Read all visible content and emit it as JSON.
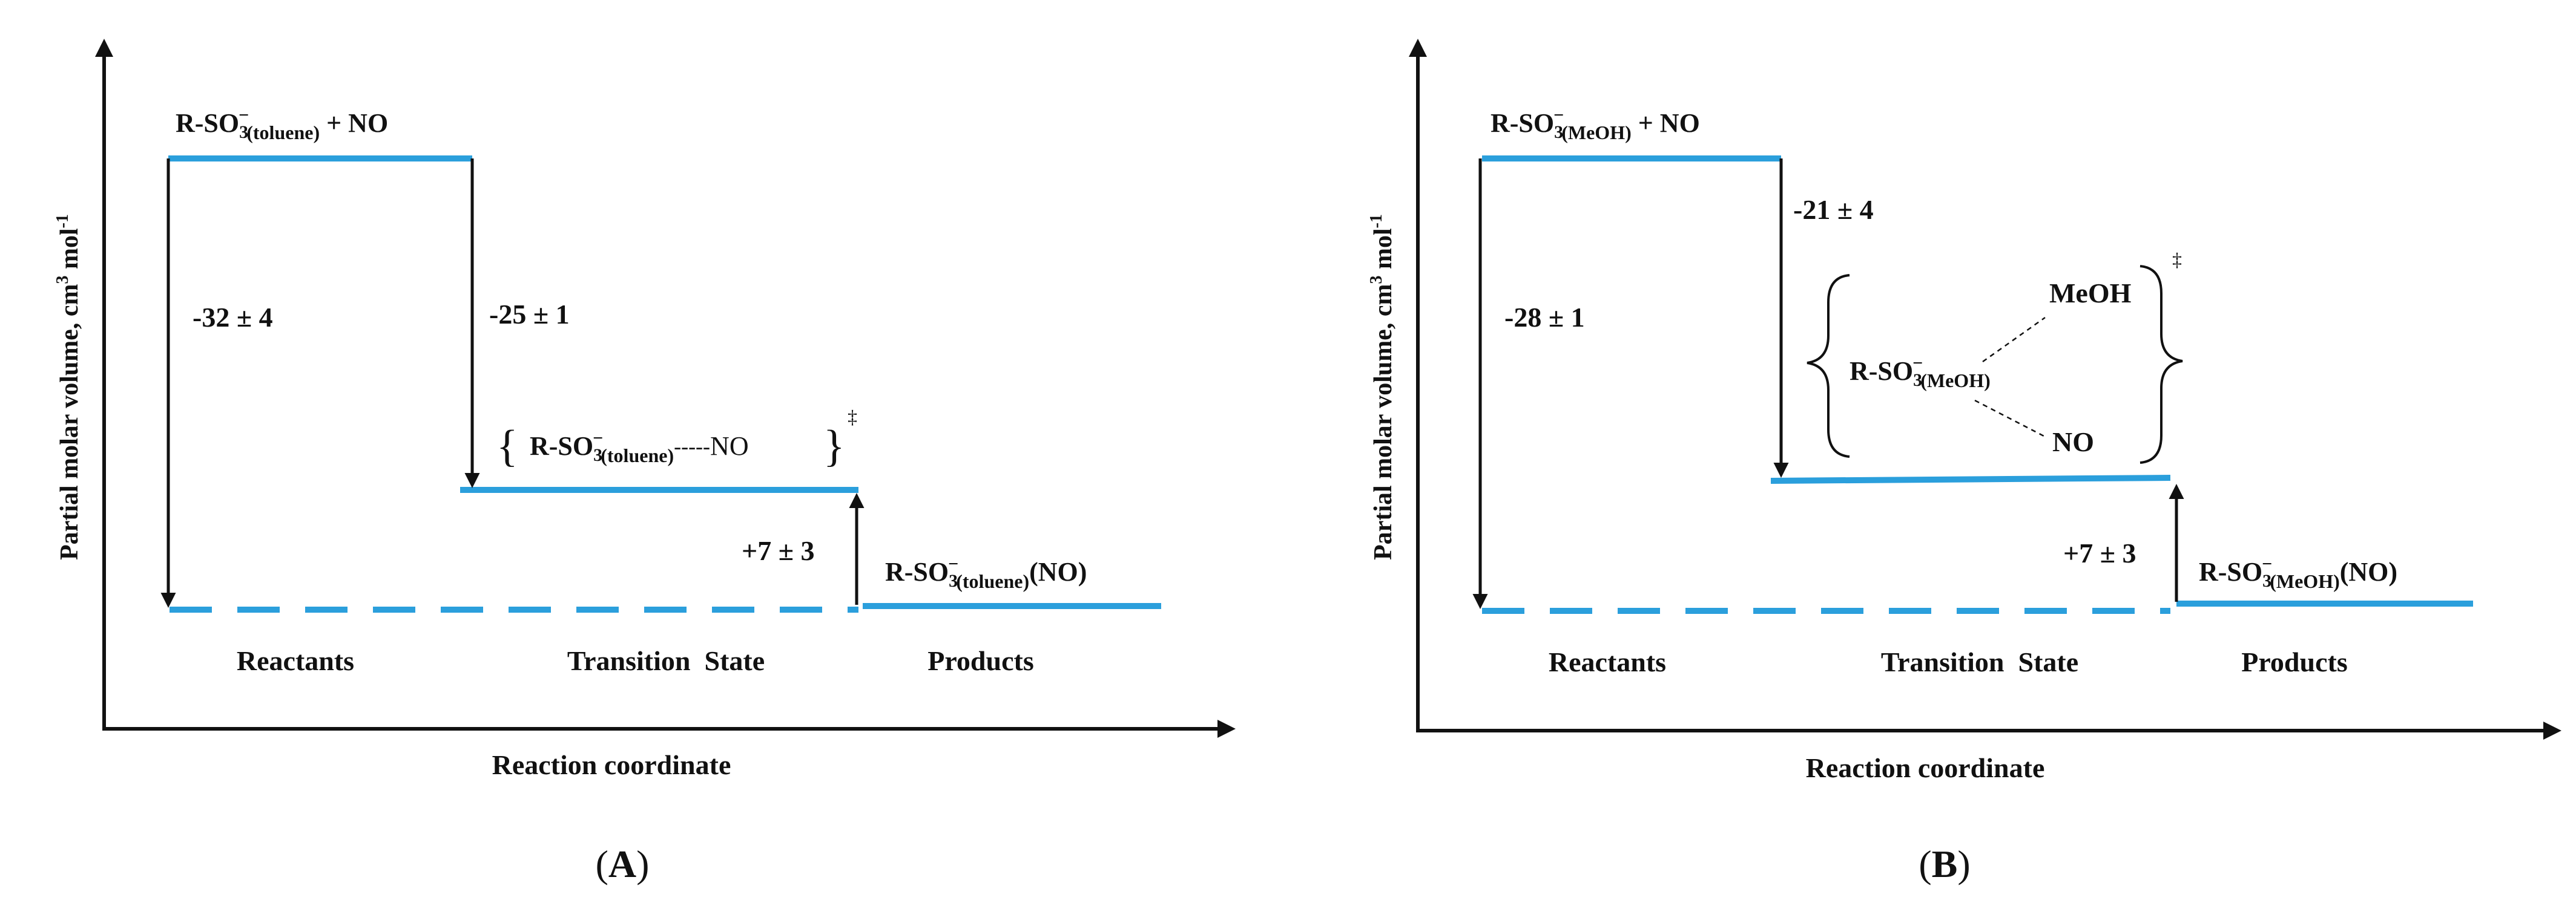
{
  "colors": {
    "level": "#2b9fdc",
    "axis": "#111111",
    "text": "#111111",
    "background": "#ffffff"
  },
  "panelA": {
    "ylabel": "Partial molar volume, cm",
    "ylabel_sup": "3",
    "ylabel_tail": " mol",
    "ylabel_sup2": "-1",
    "xlabel": "Reaction coordinate",
    "panel_label": "A",
    "reactant_base": "R-SO",
    "reactant_sub3": "3",
    "reactant_sup": "−",
    "reactant_solv": "(toluene)",
    "reactant_tail": " + NO",
    "dv_total": "-32 ± 4",
    "dv_activation": "-25 ± 1",
    "dv_product": "+7 ± 3",
    "ts_open": "{",
    "ts_base": "R-SO",
    "ts_sub3": "3",
    "ts_sup": "−",
    "ts_solv": "(toluene)",
    "ts_link": "-----",
    "ts_no_n": "N",
    "ts_no_o": "O",
    "ts_close": "}",
    "ts_dagger": "‡",
    "product_base": "R-SO",
    "product_sub3": "3",
    "product_sup": "−",
    "product_solv": "(toluene)",
    "product_tail": "(NO)",
    "stage_reactants": "Reactants",
    "stage_ts": "Transition  State",
    "stage_products": "Products"
  },
  "panelB": {
    "ylabel": "Partial molar volume, cm",
    "ylabel_sup": "3",
    "ylabel_tail": " mol",
    "ylabel_sup2": "-1",
    "xlabel": "Reaction coordinate",
    "panel_label": "B",
    "reactant_base": "R-SO",
    "reactant_sub3": "3",
    "reactant_sup": "−",
    "reactant_solv": "(MeOH)",
    "reactant_tail": " + NO",
    "dv_total": "-28 ± 1",
    "dv_activation": "-21 ± 4",
    "dv_product": "+7 ± 3",
    "ts_base": "R-SO",
    "ts_sub3": "3",
    "ts_sup": "−",
    "ts_solv": "(MeOH)",
    "ts_meoh": "MeOH",
    "ts_no": "NO",
    "ts_dagger": "‡",
    "product_base": "R-SO",
    "product_sub3": "3",
    "product_sup": "−",
    "product_solv": "(MeOH)",
    "product_tail": "(NO)",
    "stage_reactants": "Reactants",
    "stage_ts": "Transition  State",
    "stage_products": "Products"
  }
}
